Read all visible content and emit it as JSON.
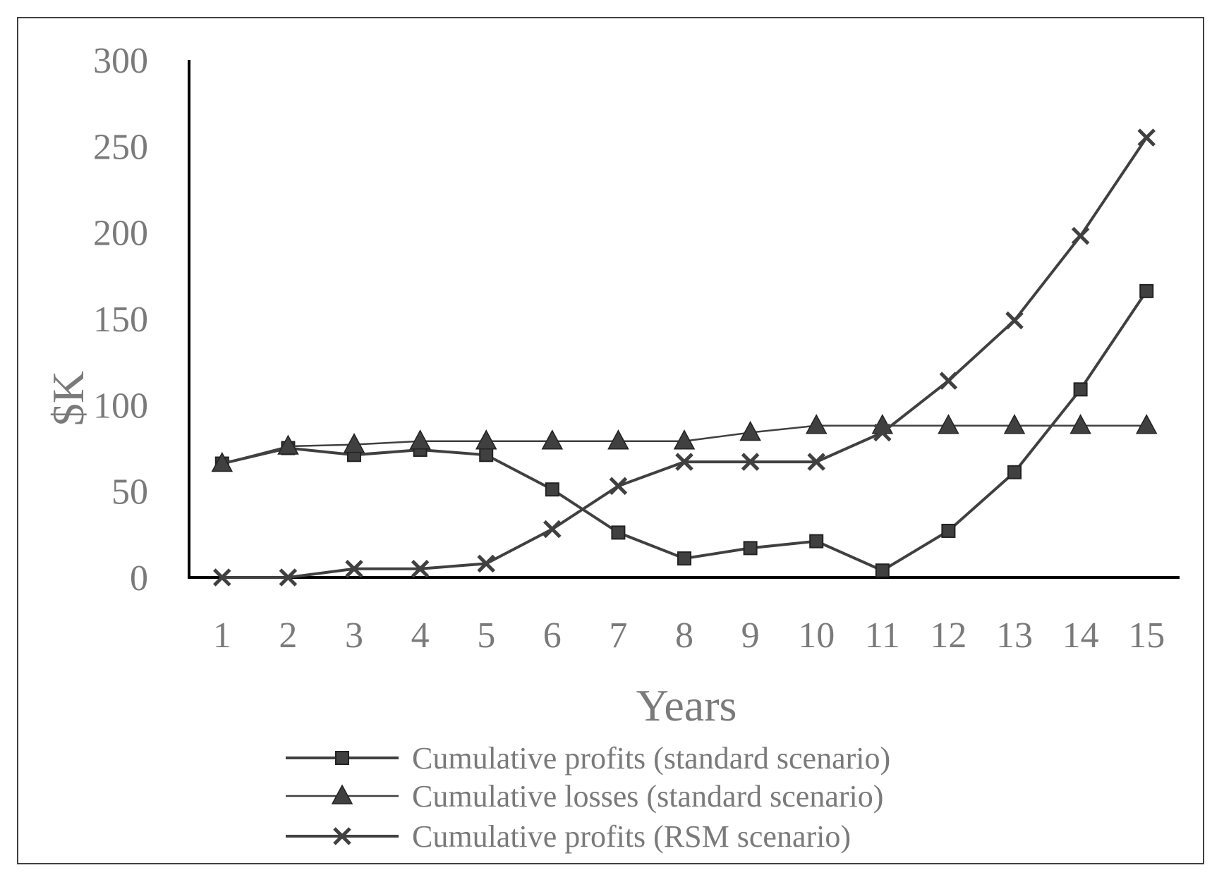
{
  "chart_data": {
    "type": "line",
    "xlabel": "Years",
    "ylabel": "$K",
    "ylim": [
      0,
      300
    ],
    "yticks": [
      "0",
      "50",
      "100",
      "150",
      "200",
      "250",
      "300"
    ],
    "categories": [
      "1",
      "2",
      "3",
      "4",
      "5",
      "6",
      "7",
      "8",
      "9",
      "10",
      "11",
      "12",
      "13",
      "14",
      "15"
    ],
    "grid": false,
    "legend_position": "bottom",
    "colors": {
      "series": "#404040",
      "text": "#7a7a7a",
      "axis": "#000000"
    },
    "series": [
      {
        "name": "Cumulative profits (standard scenario)",
        "marker": "square",
        "values": [
          66,
          75,
          71,
          74,
          71,
          51,
          26,
          11,
          17,
          21,
          4,
          27,
          61,
          109,
          166
        ]
      },
      {
        "name": "Cumulative losses (standard scenario)",
        "marker": "triangle",
        "values": [
          66,
          76,
          77,
          79,
          79,
          79,
          79,
          79,
          84,
          88,
          88,
          88,
          88,
          88,
          88
        ]
      },
      {
        "name": "Cumulative profits (RSM scenario)",
        "marker": "x",
        "values": [
          0,
          0,
          5,
          5,
          8,
          28,
          53,
          67,
          67,
          67,
          84,
          114,
          149,
          198,
          255
        ]
      }
    ]
  }
}
